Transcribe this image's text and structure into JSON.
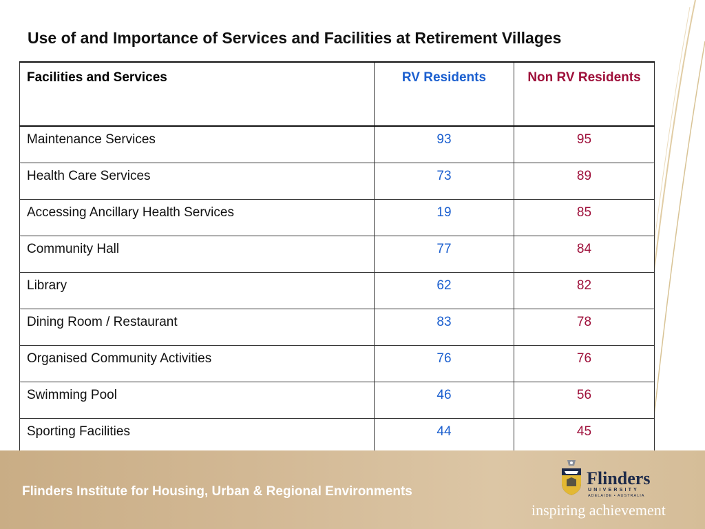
{
  "slide": {
    "title": "Use of and Importance of  Services and Facilities at Retirement Villages"
  },
  "table": {
    "headers": {
      "facility": "Facilities and Services",
      "rv": "RV Residents",
      "non_rv": "Non RV Residents"
    },
    "rows": [
      {
        "facility": "Maintenance Services",
        "rv": "93",
        "non_rv": "95"
      },
      {
        "facility": "Health Care Services",
        "rv": "73",
        "non_rv": "89"
      },
      {
        "facility": "Accessing Ancillary Health Services",
        "rv": "19",
        "non_rv": "85"
      },
      {
        "facility": "Community Hall",
        "rv": "77",
        "non_rv": "84"
      },
      {
        "facility": "Library",
        "rv": "62",
        "non_rv": "82"
      },
      {
        "facility": "Dining Room / Restaurant",
        "rv": "83",
        "non_rv": "78"
      },
      {
        "facility": "Organised Community Activities",
        "rv": "76",
        "non_rv": "76"
      },
      {
        "facility": "Swimming Pool",
        "rv": "46",
        "non_rv": "56"
      },
      {
        "facility": "Sporting Facilities",
        "rv": "44",
        "non_rv": "45"
      }
    ]
  },
  "footer": {
    "institute": "Flinders Institute for Housing, Urban & Regional Environments",
    "logo_name": "Flinders",
    "logo_university": "UNIVERSITY",
    "logo_location": "ADELAIDE • AUSTRALIA",
    "tagline": "inspiring achievement"
  },
  "colors": {
    "rv": "#1b5fcf",
    "non_rv": "#9e0f3a",
    "footer_band": "#d2b894"
  }
}
